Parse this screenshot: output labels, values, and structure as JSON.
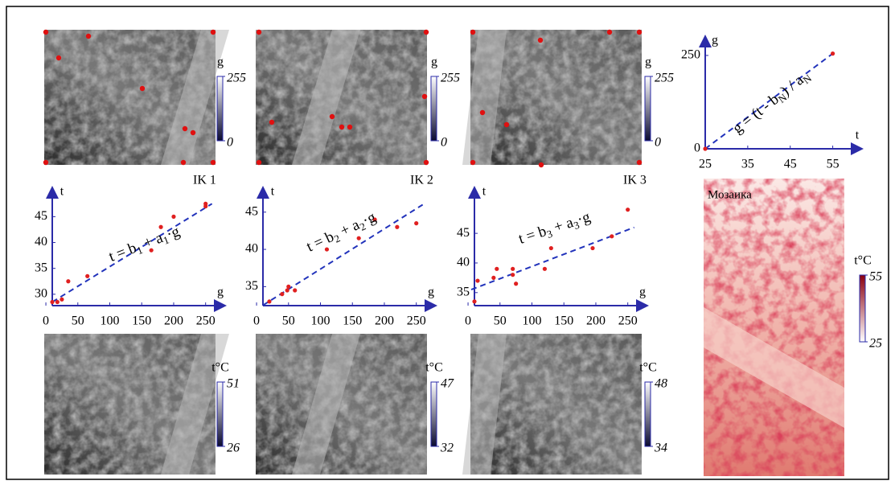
{
  "images": [
    {
      "caption": "IK 1"
    },
    {
      "caption": "IK 2"
    },
    {
      "caption": "IK 3"
    },
    {
      "caption": "Мозаика"
    }
  ],
  "colorbars": [
    {
      "label": "g",
      "ticks": [
        0,
        255
      ]
    },
    {
      "label": "g",
      "ticks": [
        0,
        255
      ]
    },
    {
      "label": "g",
      "ticks": [
        0,
        255
      ]
    },
    {
      "label": "t°C",
      "ticks": [
        26,
        51
      ]
    },
    {
      "label": "t°C",
      "ticks": [
        32,
        47
      ]
    },
    {
      "label": "t°C",
      "ticks": [
        34,
        48
      ]
    },
    {
      "label": "t°C",
      "ticks": [
        25,
        55
      ]
    }
  ],
  "chart_data": [
    {
      "type": "scatter",
      "x_label": "t",
      "y_label": "g",
      "annotation": [
        "g = (t - b",
        "N",
        ") / a",
        "N"
      ],
      "x": [
        25,
        55
      ],
      "values": [
        0,
        255
      ],
      "fit": {
        "x": [
          25,
          55
        ],
        "y": [
          0,
          255
        ]
      },
      "xlim": [
        25,
        60
      ],
      "ylim": [
        0,
        280
      ],
      "xticks": [
        25,
        35,
        45,
        55
      ],
      "yticks": [
        0,
        250
      ],
      "color": "#e02020",
      "line_color": "#2233bb"
    },
    {
      "type": "scatter",
      "x_label": "g",
      "y_label": "t",
      "annotation": [
        "t = b",
        "1",
        " + a",
        "1",
        "·g"
      ],
      "x": [
        10,
        18,
        25,
        35,
        65,
        165,
        180,
        200,
        250,
        250
      ],
      "values": [
        28.5,
        28.5,
        29,
        32.5,
        33.5,
        38.5,
        43,
        45,
        47,
        47.5
      ],
      "fit": {
        "x": [
          10,
          260
        ],
        "y": [
          28.5,
          47.5
        ]
      },
      "xlim": [
        10,
        268
      ],
      "ylim": [
        27.8,
        49.1
      ],
      "xticks": [
        0,
        50,
        100,
        150,
        200,
        250
      ],
      "yticks": [
        30,
        35,
        40,
        45
      ],
      "color": "#e02020",
      "line_color": "#2233bb"
    },
    {
      "type": "scatter",
      "x_label": "g",
      "y_label": "t",
      "annotation": [
        "t = b",
        "2",
        " + a",
        "2",
        "·g"
      ],
      "x": [
        20,
        40,
        48,
        50,
        60,
        110,
        160,
        185,
        220,
        250
      ],
      "values": [
        33,
        34,
        34.5,
        35,
        34.5,
        40,
        41.5,
        44,
        43,
        43.5
      ],
      "fit": {
        "x": [
          10,
          260
        ],
        "y": [
          32.5,
          46
        ]
      },
      "xlim": [
        10,
        268
      ],
      "ylim": [
        32.45,
        47.24
      ],
      "xticks": [
        0,
        50,
        100,
        150,
        200,
        250
      ],
      "yticks": [
        35,
        40,
        45
      ],
      "color": "#e02020",
      "line_color": "#2233bb"
    },
    {
      "type": "scatter",
      "x_label": "g",
      "y_label": "t",
      "annotation": [
        "t = b",
        "3",
        " + a",
        "3",
        "·g"
      ],
      "x": [
        10,
        15,
        40,
        45,
        70,
        70,
        75,
        120,
        130,
        195,
        225,
        250
      ],
      "values": [
        33.5,
        37,
        37.5,
        39,
        38,
        39,
        36.5,
        39,
        42.5,
        42.5,
        44.5,
        49
      ],
      "fit": {
        "x": [
          5,
          260
        ],
        "y": [
          35.5,
          46
        ]
      },
      "xlim": [
        10,
        268
      ],
      "ylim": [
        32.8,
        51.4
      ],
      "xticks": [
        0,
        50,
        100,
        150,
        200,
        250
      ],
      "yticks": [
        35,
        40,
        45
      ],
      "color": "#e02020",
      "line_color": "#2233bb"
    }
  ]
}
